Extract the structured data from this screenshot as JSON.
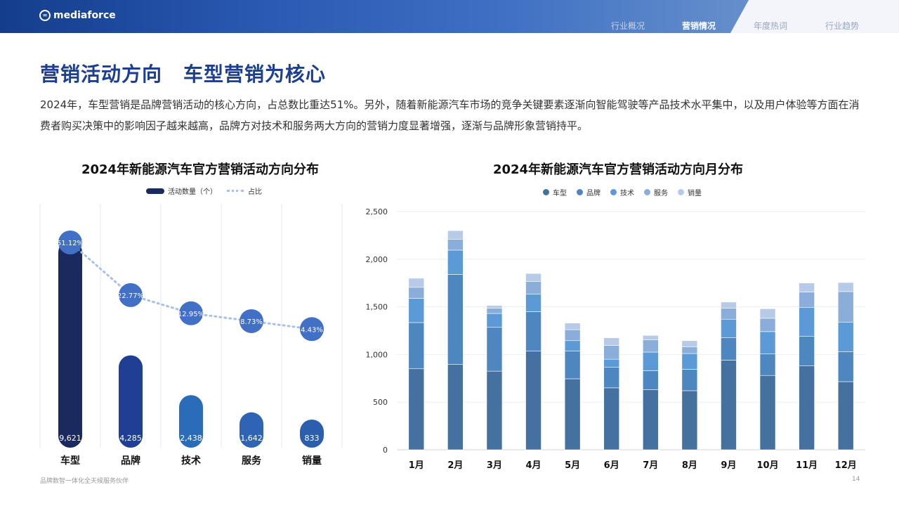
{
  "header": {
    "brand": "mediaforce",
    "tabs": [
      {
        "label": "行业概况",
        "state": "inactive"
      },
      {
        "label": "营销情况",
        "state": "active"
      },
      {
        "label": "年度热词",
        "state": "light"
      },
      {
        "label": "行业趋势",
        "state": "light"
      }
    ]
  },
  "page": {
    "title_part1": "营销活动方向",
    "title_part2": "车型营销为核心",
    "description": "2024年，车型营销是品牌营销活动的核心方向，占总数比重达51%。另外，随着新能源汽车市场的竞争关键要素逐渐向智能驾驶等产品技术水平集中，以及用户体验等方面在消费者购买决策中的影响因子越来越高，品牌方对技术和服务两大方向的营销力度显著增强，逐渐与品牌形象营销持平。"
  },
  "footer": {
    "tagline": "品牌数智一体化全天候服务伙伴",
    "page_number": "14"
  },
  "colors": {
    "title": "#1d3f8f",
    "bar_left": [
      "#1b2a5e",
      "#1f3f94",
      "#2b6cb8",
      "#2f64b4",
      "#2b5fad"
    ],
    "bubble": "#4270c5",
    "stack": [
      "#44719f",
      "#4e87c0",
      "#5b9ad6",
      "#8aaed9",
      "#b7cbe8"
    ]
  },
  "chart_data": [
    {
      "type": "bar",
      "title": "2024年新能源汽车官方营销活动方向分布",
      "categories": [
        "车型",
        "品牌",
        "技术",
        "服务",
        "销量"
      ],
      "series": [
        {
          "name": "活动数量（个）",
          "values": [
            9621,
            4285,
            2438,
            1642,
            833
          ],
          "labels": [
            "9,621",
            "4,285",
            "2,438",
            "1,642",
            "833"
          ]
        },
        {
          "name": "占比",
          "type": "line",
          "values": [
            51.12,
            22.77,
            12.95,
            8.73,
            4.43
          ],
          "labels": [
            "51.12%",
            "22.77%",
            "12.95%",
            "8.73%",
            "4.43%"
          ]
        }
      ],
      "legend": "top-center",
      "grid": "vertical"
    },
    {
      "type": "bar",
      "stacked": true,
      "title": "2024年新能源汽车官方营销活动方向月分布",
      "categories": [
        "1月",
        "2月",
        "3月",
        "4月",
        "5月",
        "6月",
        "7月",
        "8月",
        "9月",
        "10月",
        "11月",
        "12月"
      ],
      "series": [
        {
          "name": "车型",
          "values": [
            850,
            895,
            825,
            1035,
            745,
            650,
            630,
            620,
            940,
            780,
            880,
            715
          ]
        },
        {
          "name": "品牌",
          "values": [
            485,
            945,
            460,
            415,
            290,
            215,
            200,
            225,
            235,
            225,
            310,
            315
          ]
        },
        {
          "name": "技术",
          "values": [
            255,
            255,
            145,
            185,
            110,
            85,
            195,
            165,
            195,
            235,
            305,
            310
          ]
        },
        {
          "name": "服务",
          "values": [
            115,
            115,
            55,
            130,
            115,
            145,
            130,
            70,
            115,
            140,
            160,
            320
          ]
        },
        {
          "name": "销量",
          "values": [
            95,
            90,
            30,
            85,
            70,
            80,
            45,
            65,
            65,
            100,
            95,
            95
          ]
        }
      ],
      "y_ticks": [
        "0",
        "500",
        "1,000",
        "1,500",
        "2,000",
        "2,500"
      ],
      "ylim": [
        0,
        2500
      ],
      "legend": "top-center",
      "grid": "horizontal"
    }
  ]
}
